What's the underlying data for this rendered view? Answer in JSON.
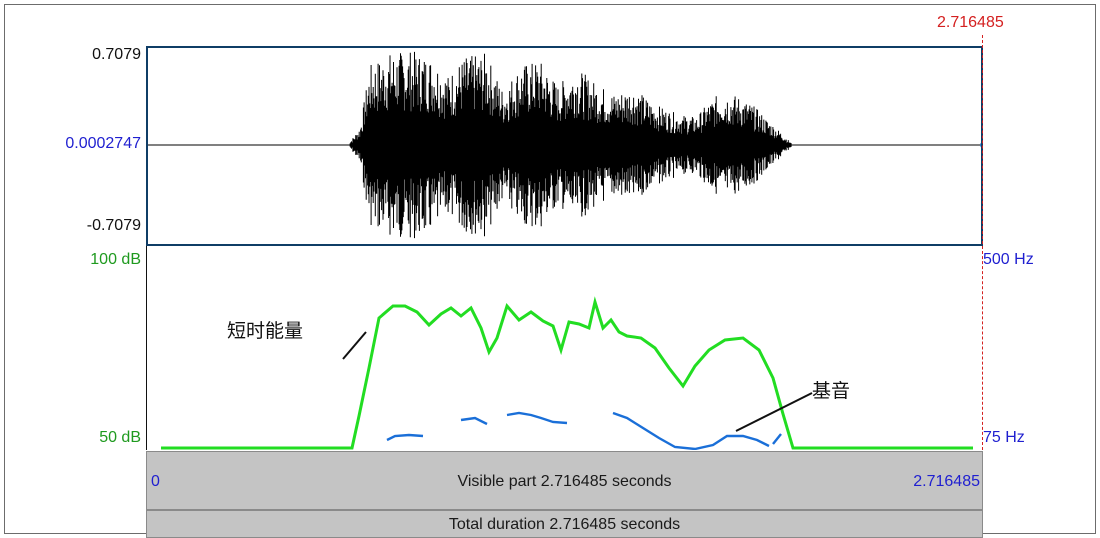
{
  "waveform": {
    "max_label": "0.7079",
    "mid_label": "0.0002747",
    "min_label": "-0.7079"
  },
  "cursor": {
    "time_label": "2.716485"
  },
  "intensity": {
    "max_label": "100 dB",
    "min_label": "50 dB",
    "color": "#22dd22"
  },
  "pitch": {
    "max_label": "500 Hz",
    "min_label": "75 Hz",
    "color": "#1a6fd8"
  },
  "annotations": {
    "energy": "短时能量",
    "pitch": "基音"
  },
  "time_bar": {
    "start": "0",
    "end": "2.716485",
    "visible_text": "Visible part 2.716485 seconds",
    "total_text": "Total duration 2.716485 seconds"
  },
  "colors": {
    "axis_blue": "#1f1fd0",
    "db_green": "#1f9a1f",
    "cursor_red": "#d42020"
  }
}
